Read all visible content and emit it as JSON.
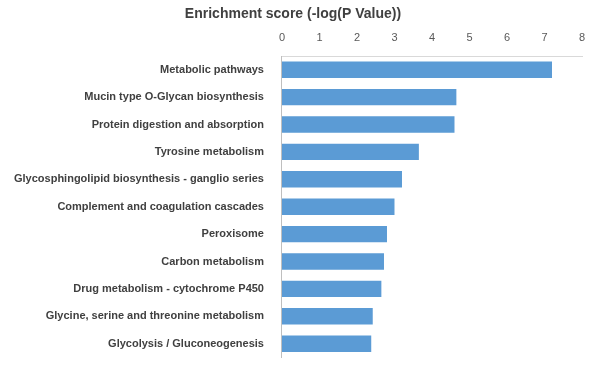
{
  "chart_data": {
    "type": "bar",
    "orientation": "horizontal",
    "title": "Enrichment score (-log(P Value))",
    "categories": [
      "Metabolic pathways",
      "Mucin type O-Glycan biosynthesis",
      "Protein digestion and absorption",
      "Tyrosine metabolism",
      "Glycosphingolipid biosynthesis - ganglio series",
      "Complement and coagulation cascades",
      "Peroxisome",
      "Carbon metabolism",
      "Drug metabolism - cytochrome P450",
      "Glycine, serine and threonine metabolism",
      "Glycolysis / Gluconeogenesis"
    ],
    "values": [
      7.2,
      4.65,
      4.6,
      3.65,
      3.2,
      3.0,
      2.8,
      2.72,
      2.65,
      2.42,
      2.38
    ],
    "color": "#5b9bd5",
    "xlim": [
      0,
      8
    ],
    "xticks": [
      0,
      1,
      2,
      3,
      4,
      5,
      6,
      7,
      8
    ],
    "grid": false
  }
}
